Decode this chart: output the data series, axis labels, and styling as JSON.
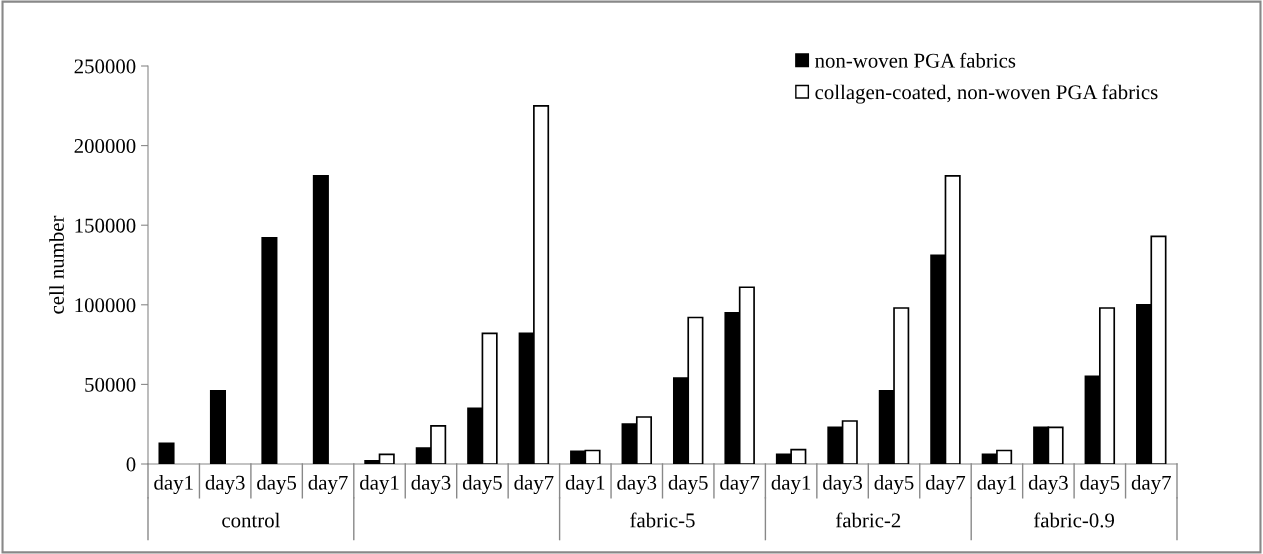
{
  "chart_data": {
    "type": "bar",
    "ylabel": "cell number",
    "categories": [
      "day1",
      "day3",
      "day5",
      "day7",
      "day1",
      "day3",
      "day5",
      "day7",
      "day1",
      "day3",
      "day5",
      "day7",
      "day1",
      "day3",
      "day5",
      "day7",
      "day1",
      "day3",
      "day5",
      "day7"
    ],
    "annotations": [
      "control",
      null,
      "fabric-5",
      "fabric-2",
      "fabric-0.9"
    ],
    "series": [
      {
        "name": "non-woven PGA fabrics",
        "color": "#000000",
        "values": [
          13000,
          46000,
          142000,
          181000,
          2000,
          10000,
          35000,
          82000,
          8000,
          25000,
          54000,
          95000,
          6000,
          23000,
          46000,
          131000,
          6000,
          23000,
          55000,
          100000
        ]
      },
      {
        "name": "collagen-coated, non-woven PGA fabrics",
        "color": "#ffffff",
        "values": [
          null,
          null,
          null,
          null,
          6000,
          24000,
          82000,
          225000,
          8500,
          29500,
          92000,
          111000,
          9000,
          27000,
          98000,
          181000,
          8500,
          23000,
          98000,
          143000
        ]
      }
    ],
    "ylim": [
      0,
      250000
    ],
    "yticks": [
      0,
      50000,
      100000,
      150000,
      200000,
      250000
    ],
    "grid": false,
    "legend": "top right"
  }
}
